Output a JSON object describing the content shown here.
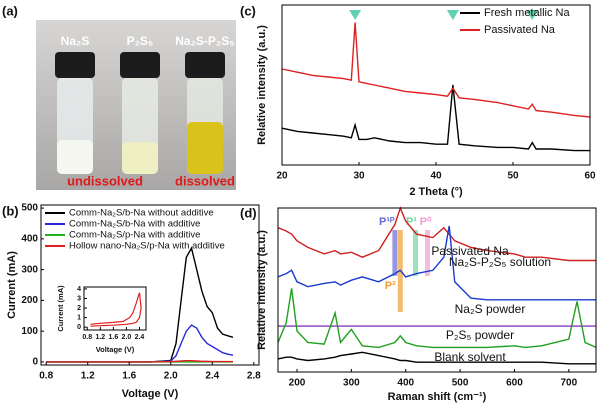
{
  "photo": {
    "label": "(a)",
    "vials": [
      "Na₂S",
      "P₂S₅",
      "Na₂S-P₂S₅"
    ],
    "captions": [
      "undissolved",
      "dissolved"
    ]
  },
  "chart_data": [
    {
      "type": "line",
      "label": "(b)",
      "xlabel": "Voltage (V)",
      "ylabel": "Current (mA)",
      "x": [
        0.8,
        1.0,
        1.2,
        1.4,
        1.6,
        1.8,
        2.0,
        2.05,
        2.1,
        2.15,
        2.2,
        2.25,
        2.3,
        2.35,
        2.4,
        2.45,
        2.5,
        2.55,
        2.6
      ],
      "series": [
        {
          "name": "Comm-Na₂S/b-Na without additive",
          "color": "#000000",
          "values": [
            0,
            0,
            0,
            0,
            0,
            0,
            5,
            60,
            200,
            340,
            370,
            300,
            230,
            180,
            160,
            110,
            90,
            85,
            80
          ]
        },
        {
          "name": "Comm-Na₂S/b-Na with additive",
          "color": "#2a2ad8",
          "values": [
            0,
            0,
            0,
            0,
            0,
            0,
            3,
            20,
            60,
            100,
            120,
            110,
            80,
            60,
            50,
            40,
            30,
            25,
            22
          ]
        },
        {
          "name": "Comm-Na₂S/p-Na with additive",
          "color": "#1fb31f",
          "values": [
            0,
            0,
            0,
            0,
            0,
            0,
            0,
            0,
            0,
            0,
            0,
            0,
            0,
            0,
            0,
            0,
            0,
            0,
            0
          ]
        },
        {
          "name": "Hollow nano-Na₂S/p-Na with additive",
          "color": "#e02020",
          "values": [
            0,
            0,
            0,
            0,
            0,
            0,
            1,
            2,
            3,
            4,
            4,
            3,
            2,
            2,
            1,
            1,
            1,
            1,
            1
          ]
        }
      ],
      "xlim": [
        0.75,
        2.85
      ],
      "ylim": [
        -10,
        510
      ],
      "xticks": [
        0.8,
        1.2,
        1.6,
        {
          "value": 2,
          "label": "2.0"
        },
        2.4,
        2.8
      ],
      "yticks": [
        0,
        100,
        200,
        300,
        400,
        500
      ],
      "legend": "upper left"
    },
    {
      "type": "line",
      "xlabel": "Voltage (V)",
      "ylabel": "Current (mA)",
      "x": [
        0.9,
        1.2,
        1.6,
        1.9,
        2.1,
        2.2,
        2.3,
        2.4,
        2.45,
        2.4,
        2.3,
        2.2,
        2.0,
        1.6,
        1.2,
        0.9
      ],
      "series": [
        {
          "color": "#e02020",
          "values": [
            0.3,
            0.4,
            0.5,
            0.6,
            1.0,
            1.5,
            2.5,
            3.6,
            2.0,
            1.0,
            0.5,
            0.4,
            0.3,
            0.2,
            0.15,
            0.1
          ]
        }
      ],
      "xlim": [
        0.7,
        2.6
      ],
      "ylim": [
        -0.3,
        4.2
      ],
      "xticks": [
        0.8,
        1.2,
        1.6,
        {
          "value": 2,
          "label": "2.0"
        },
        2.4
      ],
      "yticks": [
        0,
        1,
        2,
        3,
        4
      ]
    },
    {
      "type": "line",
      "label": "(c)",
      "xlabel": "2 Theta (°)",
      "ylabel": "Relative intensity (a.u.)",
      "x": [
        20,
        22,
        24,
        26,
        28,
        29,
        29.5,
        30,
        31,
        32,
        34,
        36,
        38,
        40,
        41.5,
        42.2,
        43,
        45,
        48,
        50,
        52,
        52.5,
        53,
        55,
        58,
        60
      ],
      "series": [
        {
          "name": "Fresh metallic Na",
          "color": "#000000",
          "values": [
            23,
            21,
            20,
            19,
            18,
            17,
            25,
            16,
            16,
            17,
            15,
            14,
            14,
            13,
            13,
            50,
            13,
            12,
            11,
            11,
            10,
            14,
            10,
            10,
            9,
            9
          ]
        },
        {
          "name": "Passivated Na",
          "color": "#e02020",
          "values": [
            60,
            58,
            56,
            55,
            54,
            53,
            89,
            52,
            51,
            50,
            48,
            46,
            45,
            44,
            43,
            48,
            42,
            41,
            39,
            37,
            35,
            38,
            34,
            33,
            31,
            30
          ]
        }
      ],
      "xlim": [
        20,
        60
      ],
      "ylim": [
        0,
        100
      ],
      "xticks": [
        20,
        30,
        40,
        50,
        60
      ],
      "legend": "upper right",
      "peak_markers": {
        "x": [
          29.5,
          42.2,
          52.5
        ],
        "color": "#5ed1b0"
      }
    },
    {
      "type": "line",
      "label": "(d)",
      "xlabel": "Raman shift (cm⁻¹)",
      "ylabel": "Relative intensity (a.u.)",
      "x": [
        165,
        180,
        190,
        200,
        220,
        250,
        270,
        280,
        300,
        320,
        350,
        380,
        390,
        400,
        420,
        450,
        470,
        480,
        490,
        520,
        550,
        600,
        620,
        650,
        700,
        715,
        730,
        750
      ],
      "series": [
        {
          "name": "Passivated Na",
          "color": "#d02020",
          "values": [
            88,
            86,
            84,
            80,
            76,
            72,
            74,
            72,
            73,
            70,
            74,
            90,
            100,
            92,
            84,
            82,
            88,
            84,
            80,
            76,
            74,
            72,
            70,
            70,
            68,
            68,
            68,
            68
          ]
        },
        {
          "name": "Na₂S-P₂S₅ solution",
          "color": "#1a3ad0",
          "values": [
            58,
            60,
            62,
            55,
            52,
            54,
            55,
            53,
            56,
            58,
            55,
            60,
            62,
            58,
            60,
            62,
            70,
            89,
            55,
            45,
            44,
            44,
            44,
            44,
            44,
            44,
            44,
            44
          ]
        },
        {
          "name": "Na₂S powder",
          "color": "#8a3ac0",
          "values": [
            28,
            28,
            28,
            28,
            28,
            28,
            28,
            28,
            28,
            28,
            28,
            28,
            28,
            28,
            28,
            28,
            28,
            28,
            28,
            28,
            28,
            28,
            28,
            28,
            28,
            28,
            28,
            28
          ]
        },
        {
          "name": "P₂S₅ powder",
          "color": "#20a020",
          "values": [
            18,
            30,
            51,
            25,
            18,
            17,
            36,
            18,
            26,
            16,
            15,
            18,
            22,
            18,
            16,
            15,
            15,
            15,
            15,
            15,
            15,
            16,
            15,
            16,
            20,
            43,
            18,
            15
          ]
        },
        {
          "name": "Blank solvent",
          "color": "#000000",
          "values": [
            8,
            9,
            9,
            8,
            7,
            8,
            9,
            10,
            11,
            12,
            10,
            8,
            7,
            7,
            6,
            6,
            6,
            6,
            6,
            6,
            6,
            6,
            6,
            6,
            5,
            5,
            5,
            5
          ]
        }
      ],
      "xlim": [
        165,
        750
      ],
      "ylim": [
        0,
        100
      ],
      "xticks": [
        200,
        300,
        400,
        500,
        600,
        700
      ],
      "legend": "inline",
      "bands": [
        {
          "label": "P¹ᴾ",
          "x": 380,
          "color": "#6a6ad8"
        },
        {
          "label": "P²",
          "x": 390,
          "color": "#f0a030"
        },
        {
          "label": "P¹",
          "x": 418,
          "color": "#6fd6a0"
        },
        {
          "label": "P⁰",
          "x": 440,
          "color": "#f0a0d0"
        }
      ]
    }
  ]
}
